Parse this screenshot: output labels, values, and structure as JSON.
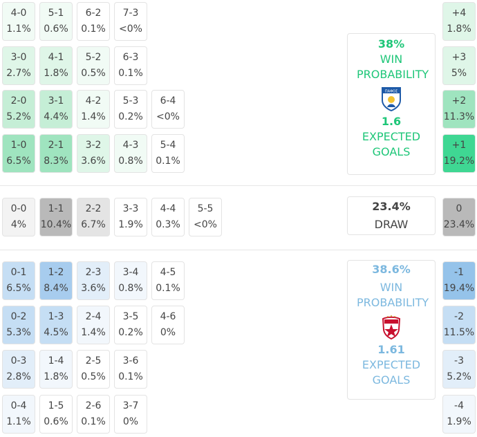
{
  "home": {
    "rows": [
      [
        {
          "score": "4-0",
          "pct": "1.1%"
        },
        {
          "score": "5-1",
          "pct": "0.6%"
        },
        {
          "score": "6-2",
          "pct": "0.1%"
        },
        {
          "score": "7-3",
          "pct": "<0%"
        }
      ],
      [
        {
          "score": "3-0",
          "pct": "2.7%"
        },
        {
          "score": "4-1",
          "pct": "1.8%"
        },
        {
          "score": "5-2",
          "pct": "0.5%"
        },
        {
          "score": "6-3",
          "pct": "0.1%"
        }
      ],
      [
        {
          "score": "2-0",
          "pct": "5.2%"
        },
        {
          "score": "3-1",
          "pct": "4.4%"
        },
        {
          "score": "4-2",
          "pct": "1.4%"
        },
        {
          "score": "5-3",
          "pct": "0.2%"
        },
        {
          "score": "6-4",
          "pct": "<0%"
        }
      ],
      [
        {
          "score": "1-0",
          "pct": "6.5%"
        },
        {
          "score": "2-1",
          "pct": "8.3%"
        },
        {
          "score": "3-2",
          "pct": "3.6%"
        },
        {
          "score": "4-3",
          "pct": "0.8%"
        },
        {
          "score": "5-4",
          "pct": "0.1%"
        }
      ]
    ],
    "margins": [
      {
        "label": "+4",
        "pct": "1.8%"
      },
      {
        "label": "+3",
        "pct": "5%"
      },
      {
        "label": "+2",
        "pct": "11.3%"
      },
      {
        "label": "+1",
        "pct": "19.2%"
      }
    ],
    "summary": {
      "win_pct": "38%",
      "win_label": "WIN PROBABILITY",
      "crest_text": "ΠΑΦΟΣ",
      "xg": "1.6",
      "xg_label": "EXPECTED GOALS"
    },
    "color": "#1ec678"
  },
  "draw": {
    "row": [
      {
        "score": "0-0",
        "pct": "4%"
      },
      {
        "score": "1-1",
        "pct": "10.4%"
      },
      {
        "score": "2-2",
        "pct": "6.7%"
      },
      {
        "score": "3-3",
        "pct": "1.9%"
      },
      {
        "score": "4-4",
        "pct": "0.3%"
      },
      {
        "score": "5-5",
        "pct": "<0%"
      }
    ],
    "margin": {
      "label": "0",
      "pct": "23.4%"
    },
    "summary": {
      "pct": "23.4%",
      "label": "DRAW"
    }
  },
  "away": {
    "rows": [
      [
        {
          "score": "0-1",
          "pct": "6.5%"
        },
        {
          "score": "1-2",
          "pct": "8.4%"
        },
        {
          "score": "2-3",
          "pct": "3.6%"
        },
        {
          "score": "3-4",
          "pct": "0.8%"
        },
        {
          "score": "4-5",
          "pct": "0.1%"
        }
      ],
      [
        {
          "score": "0-2",
          "pct": "5.3%"
        },
        {
          "score": "1-3",
          "pct": "4.5%"
        },
        {
          "score": "2-4",
          "pct": "1.4%"
        },
        {
          "score": "3-5",
          "pct": "0.2%"
        },
        {
          "score": "4-6",
          "pct": "0%"
        }
      ],
      [
        {
          "score": "0-3",
          "pct": "2.8%"
        },
        {
          "score": "1-4",
          "pct": "1.8%"
        },
        {
          "score": "2-5",
          "pct": "0.5%"
        },
        {
          "score": "3-6",
          "pct": "0.1%"
        }
      ],
      [
        {
          "score": "0-4",
          "pct": "1.1%"
        },
        {
          "score": "1-5",
          "pct": "0.6%"
        },
        {
          "score": "2-6",
          "pct": "0.1%"
        },
        {
          "score": "3-7",
          "pct": "0%"
        }
      ]
    ],
    "margins": [
      {
        "label": "-1",
        "pct": "19.4%"
      },
      {
        "label": "-2",
        "pct": "11.5%"
      },
      {
        "label": "-3",
        "pct": "5.2%"
      },
      {
        "label": "-4",
        "pct": "1.9%"
      }
    ],
    "summary": {
      "win_pct": "38.6%",
      "win_label": "WIN PROBABILITY",
      "xg": "1.61",
      "xg_label": "EXPECTED GOALS"
    },
    "color": "#7cb8df"
  }
}
